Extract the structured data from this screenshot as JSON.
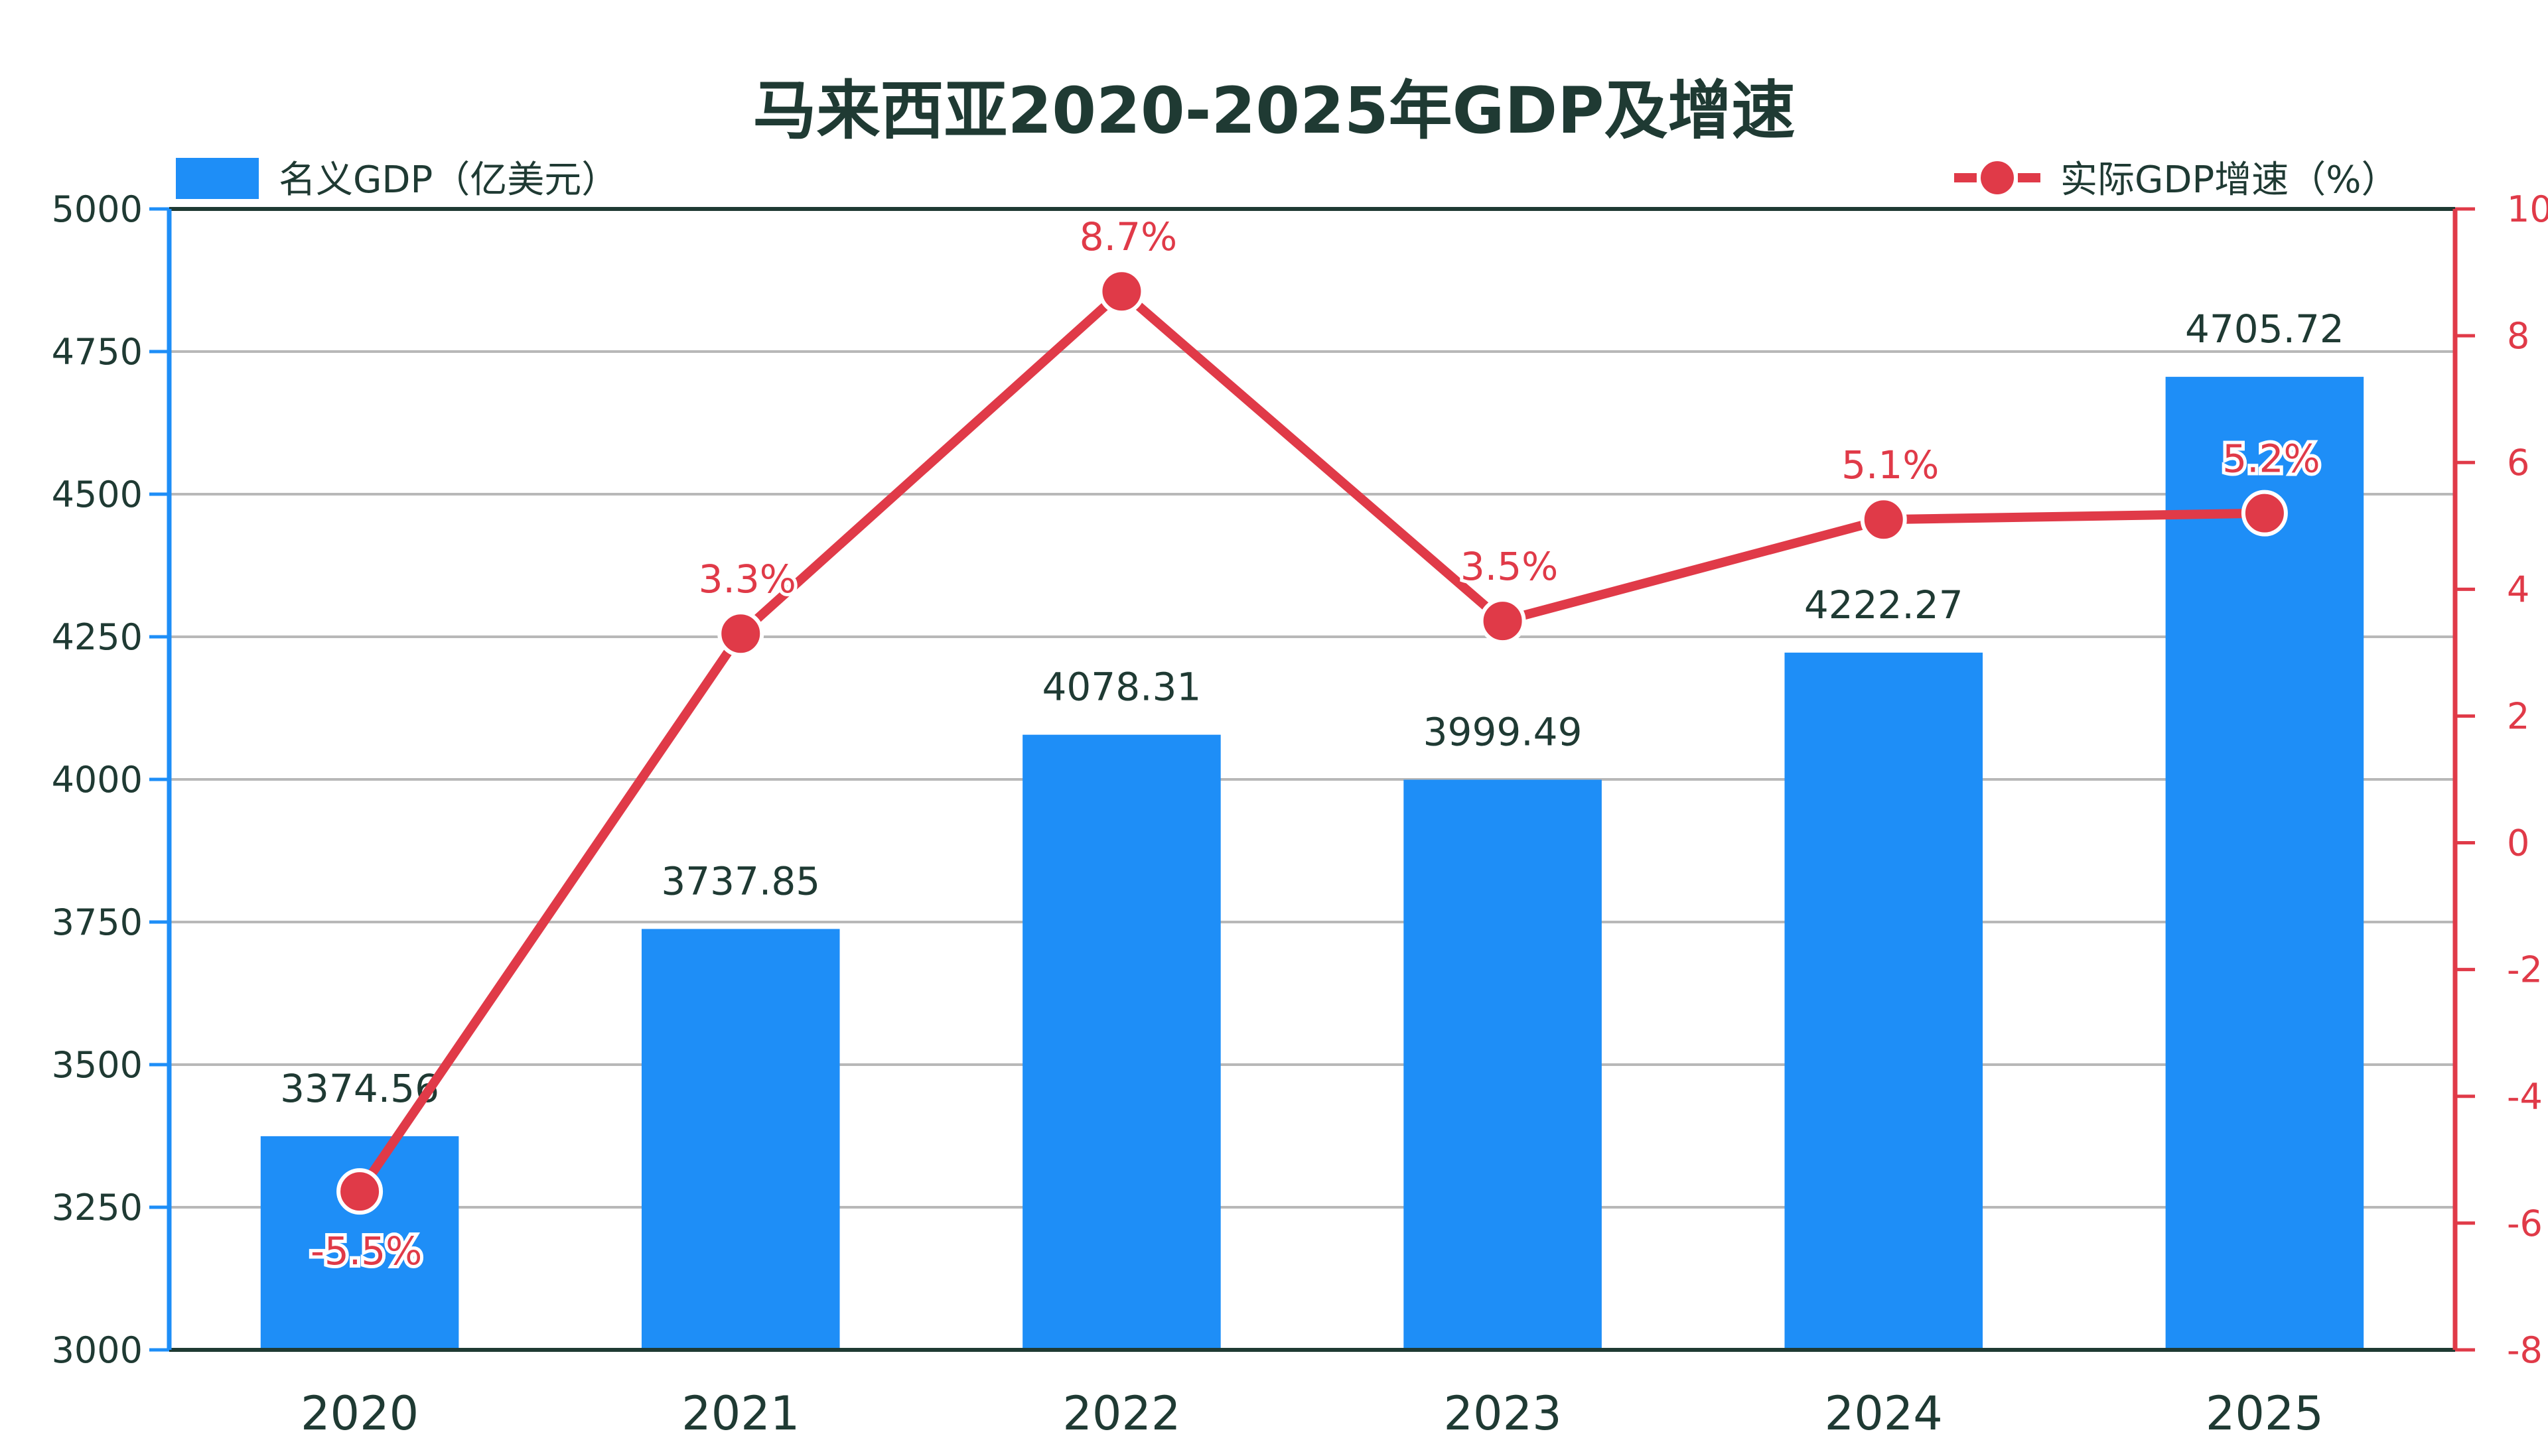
{
  "chart_data": {
    "type": "bar+line",
    "title": "马来西亚2020-2025年GDP及增速",
    "categories": [
      "2020",
      "2021",
      "2022",
      "2023",
      "2024",
      "2025"
    ],
    "series": [
      {
        "name": "名义GDP（亿美元）",
        "type": "bar",
        "axis": "left",
        "values": [
          3374.56,
          3737.85,
          4078.31,
          3999.49,
          4222.27,
          4705.72
        ],
        "labels": [
          "3374.56",
          "3737.85",
          "4078.31",
          "3999.49",
          "4222.27",
          "4705.72"
        ],
        "color": "#1e8ef7"
      },
      {
        "name": "实际GDP增速（%）",
        "type": "line",
        "axis": "right",
        "values": [
          -5.5,
          3.3,
          8.7,
          3.5,
          5.1,
          5.2
        ],
        "labels": [
          "-5.5%",
          "3.3%",
          "8.7%",
          "3.5%",
          "5.1%",
          "5.2%"
        ],
        "color": "#e03a48"
      }
    ],
    "y_left": {
      "range": [
        3000,
        5000
      ],
      "ticks": [
        "3000",
        "3250",
        "3500",
        "3750",
        "4000",
        "4250",
        "4500",
        "4750",
        "5000"
      ]
    },
    "y_right": {
      "range": [
        -8,
        10
      ],
      "ticks": [
        "-8",
        "-6",
        "-4",
        "-2",
        "0",
        "2",
        "4",
        "6",
        "8",
        "10"
      ]
    },
    "grid": true,
    "legend": {
      "left_entry": "top-left",
      "right_entry": "top-right"
    }
  }
}
